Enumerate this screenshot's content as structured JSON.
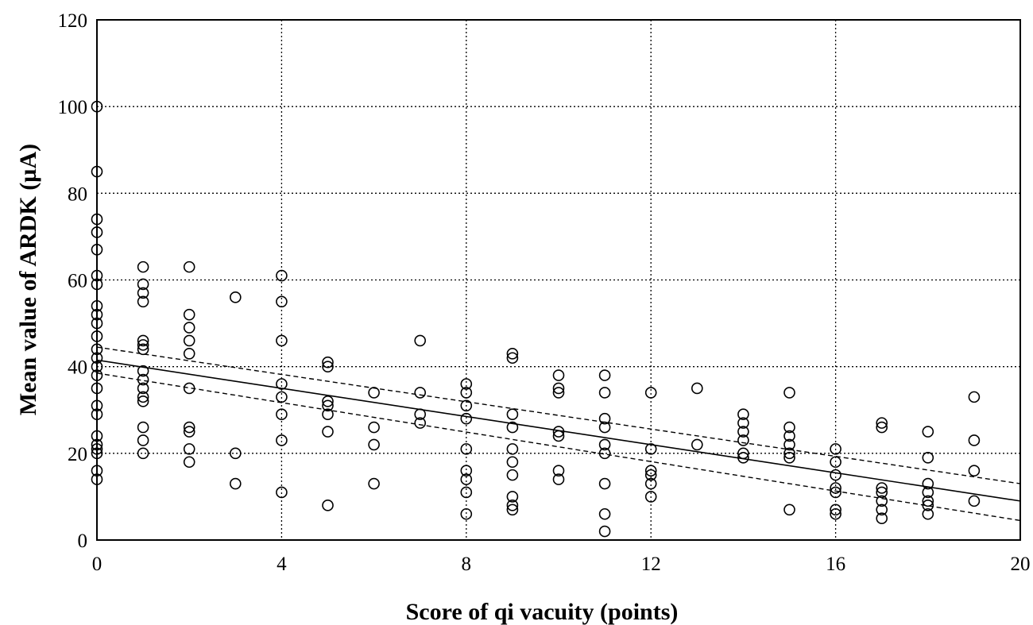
{
  "chart_data": {
    "type": "scatter",
    "title": "",
    "xlabel": "Score of qi vacuity (points)",
    "ylabel": "Mean value of ARDK (µA)",
    "xlim": [
      0,
      20
    ],
    "ylim": [
      0,
      120
    ],
    "x_ticks": [
      "0",
      "4",
      "8",
      "12",
      "16",
      "20"
    ],
    "y_ticks": [
      "0",
      "20",
      "40",
      "60",
      "80",
      "100",
      "120"
    ],
    "grid": true,
    "legend": "none",
    "series": [
      {
        "points": [
          [
            0,
            100
          ],
          [
            0,
            85
          ],
          [
            0,
            74
          ],
          [
            0,
            71
          ],
          [
            0,
            67
          ],
          [
            0,
            61
          ],
          [
            0,
            59
          ],
          [
            0,
            54
          ],
          [
            0,
            52
          ],
          [
            0,
            50
          ],
          [
            0,
            47
          ],
          [
            0,
            44
          ],
          [
            0,
            42
          ],
          [
            0,
            40
          ],
          [
            0,
            38
          ],
          [
            0,
            35
          ],
          [
            0,
            31
          ],
          [
            0,
            29
          ],
          [
            0,
            24
          ],
          [
            0,
            22
          ],
          [
            0,
            21
          ],
          [
            0,
            20
          ],
          [
            0,
            16
          ],
          [
            0,
            14
          ],
          [
            1,
            63
          ],
          [
            1,
            59
          ],
          [
            1,
            57
          ],
          [
            1,
            55
          ],
          [
            1,
            46
          ],
          [
            1,
            45
          ],
          [
            1,
            44
          ],
          [
            1,
            39
          ],
          [
            1,
            37
          ],
          [
            1,
            35
          ],
          [
            1,
            33
          ],
          [
            1,
            32
          ],
          [
            1,
            26
          ],
          [
            1,
            23
          ],
          [
            1,
            20
          ],
          [
            2,
            63
          ],
          [
            2,
            52
          ],
          [
            2,
            49
          ],
          [
            2,
            46
          ],
          [
            2,
            43
          ],
          [
            2,
            35
          ],
          [
            2,
            26
          ],
          [
            2,
            25
          ],
          [
            2,
            21
          ],
          [
            2,
            18
          ],
          [
            3,
            56
          ],
          [
            3,
            20
          ],
          [
            3,
            13
          ],
          [
            4,
            61
          ],
          [
            4,
            55
          ],
          [
            4,
            46
          ],
          [
            4,
            36
          ],
          [
            4,
            33
          ],
          [
            4,
            29
          ],
          [
            4,
            23
          ],
          [
            4,
            11
          ],
          [
            5,
            41
          ],
          [
            5,
            40
          ],
          [
            5,
            32
          ],
          [
            5,
            31
          ],
          [
            5,
            29
          ],
          [
            5,
            25
          ],
          [
            5,
            8
          ],
          [
            6,
            34
          ],
          [
            6,
            26
          ],
          [
            6,
            22
          ],
          [
            6,
            13
          ],
          [
            7,
            46
          ],
          [
            7,
            34
          ],
          [
            7,
            29
          ],
          [
            7,
            27
          ],
          [
            8,
            36
          ],
          [
            8,
            34
          ],
          [
            8,
            31
          ],
          [
            8,
            28
          ],
          [
            8,
            21
          ],
          [
            8,
            16
          ],
          [
            8,
            14
          ],
          [
            8,
            11
          ],
          [
            8,
            6
          ],
          [
            9,
            43
          ],
          [
            9,
            42
          ],
          [
            9,
            29
          ],
          [
            9,
            26
          ],
          [
            9,
            21
          ],
          [
            9,
            18
          ],
          [
            9,
            15
          ],
          [
            9,
            10
          ],
          [
            9,
            8
          ],
          [
            9,
            7
          ],
          [
            10,
            38
          ],
          [
            10,
            35
          ],
          [
            10,
            34
          ],
          [
            10,
            25
          ],
          [
            10,
            24
          ],
          [
            10,
            16
          ],
          [
            10,
            14
          ],
          [
            11,
            38
          ],
          [
            11,
            34
          ],
          [
            11,
            28
          ],
          [
            11,
            26
          ],
          [
            11,
            22
          ],
          [
            11,
            20
          ],
          [
            11,
            13
          ],
          [
            11,
            6
          ],
          [
            11,
            2
          ],
          [
            12,
            34
          ],
          [
            12,
            21
          ],
          [
            12,
            16
          ],
          [
            12,
            15
          ],
          [
            12,
            13
          ],
          [
            12,
            10
          ],
          [
            13,
            35
          ],
          [
            13,
            22
          ],
          [
            14,
            29
          ],
          [
            14,
            27
          ],
          [
            14,
            25
          ],
          [
            14,
            23
          ],
          [
            14,
            20
          ],
          [
            14,
            19
          ],
          [
            15,
            34
          ],
          [
            15,
            26
          ],
          [
            15,
            24
          ],
          [
            15,
            22
          ],
          [
            15,
            20
          ],
          [
            15,
            19
          ],
          [
            15,
            7
          ],
          [
            16,
            21
          ],
          [
            16,
            18
          ],
          [
            16,
            15
          ],
          [
            16,
            12
          ],
          [
            16,
            11
          ],
          [
            16,
            7
          ],
          [
            16,
            6
          ],
          [
            17,
            27
          ],
          [
            17,
            26
          ],
          [
            17,
            12
          ],
          [
            17,
            11
          ],
          [
            17,
            9
          ],
          [
            17,
            7
          ],
          [
            17,
            5
          ],
          [
            18,
            25
          ],
          [
            18,
            19
          ],
          [
            18,
            13
          ],
          [
            18,
            11
          ],
          [
            18,
            9
          ],
          [
            18,
            8
          ],
          [
            18,
            6
          ],
          [
            19,
            33
          ],
          [
            19,
            23
          ],
          [
            19,
            16
          ],
          [
            19,
            9
          ]
        ]
      }
    ],
    "regression_line": {
      "x": [
        0,
        20
      ],
      "y": [
        41.5,
        9
      ]
    },
    "confidence_band": {
      "upper": {
        "x": [
          0,
          20
        ],
        "y": [
          44.5,
          13
        ]
      },
      "lower": {
        "x": [
          0,
          20
        ],
        "y": [
          38.5,
          4.5
        ]
      }
    }
  }
}
